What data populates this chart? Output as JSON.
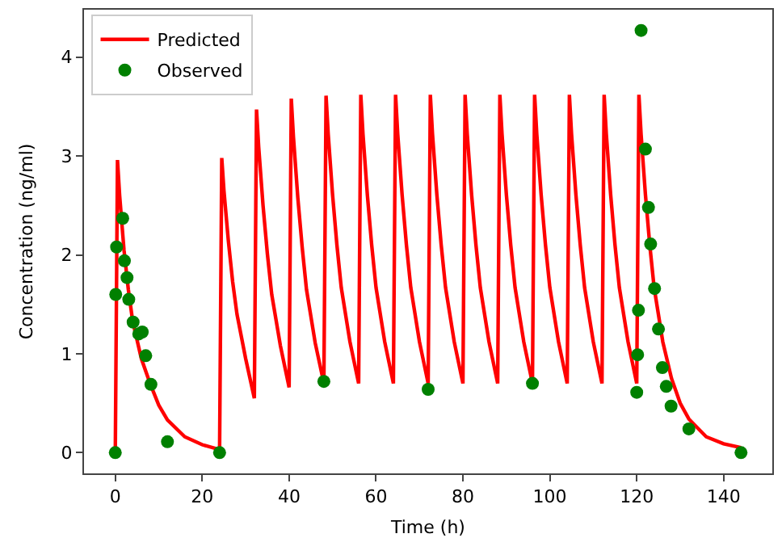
{
  "chart_data": {
    "type": "line",
    "xlabel": "Time (h)",
    "ylabel": "Concentration (ng/ml)",
    "xlim": [
      -7.2,
      151.2
    ],
    "xticks": [
      0,
      20,
      40,
      60,
      80,
      100,
      120,
      140
    ],
    "ylim": [
      -0.21,
      4.48
    ],
    "yticks": [
      0,
      1,
      2,
      3,
      4
    ],
    "grid": false,
    "legend": "top left",
    "series": [
      {
        "name": "Predicted",
        "color": "#ff0000",
        "marker": "none",
        "line_style": "solid",
        "x": [
          0,
          0.5,
          1,
          2,
          3,
          4,
          6,
          8,
          10,
          12,
          16,
          20,
          24,
          24.5,
          25,
          26,
          27,
          28,
          30,
          32,
          32.5,
          33,
          34,
          35,
          36,
          38,
          40,
          40.5,
          41,
          42,
          43,
          44,
          46,
          48,
          48.5,
          49,
          50,
          51,
          52,
          54,
          56,
          56.5,
          57,
          58,
          59,
          60,
          62,
          64,
          64.5,
          65,
          66,
          67,
          68,
          70,
          72,
          72.5,
          73,
          74,
          75,
          76,
          78,
          80,
          80.5,
          81,
          82,
          83,
          84,
          86,
          88,
          88.5,
          89,
          90,
          91,
          92,
          94,
          96,
          96.5,
          97,
          98,
          99,
          100,
          102,
          104,
          104.5,
          105,
          106,
          107,
          108,
          110,
          112,
          112.5,
          113,
          114,
          115,
          116,
          118,
          120,
          120.5,
          121,
          122,
          123,
          124,
          126,
          128,
          130,
          132,
          136,
          140,
          144
        ],
        "values": [
          0,
          2.96,
          2.6,
          2.05,
          1.65,
          1.33,
          0.95,
          0.7,
          0.48,
          0.33,
          0.16,
          0.08,
          0.03,
          2.98,
          2.65,
          2.15,
          1.73,
          1.4,
          0.95,
          0.55,
          3.47,
          3.09,
          2.5,
          2.01,
          1.6,
          1.08,
          0.66,
          3.58,
          3.19,
          2.58,
          2.08,
          1.65,
          1.11,
          0.7,
          3.61,
          3.22,
          2.61,
          2.1,
          1.67,
          1.12,
          0.7,
          3.62,
          3.22,
          2.61,
          2.1,
          1.67,
          1.12,
          0.7,
          3.62,
          3.22,
          2.61,
          2.1,
          1.67,
          1.12,
          0.7,
          3.62,
          3.22,
          2.61,
          2.1,
          1.67,
          1.12,
          0.7,
          3.62,
          3.22,
          2.61,
          2.1,
          1.67,
          1.12,
          0.7,
          3.62,
          3.22,
          2.61,
          2.1,
          1.67,
          1.12,
          0.7,
          3.62,
          3.22,
          2.61,
          2.1,
          1.67,
          1.12,
          0.7,
          3.62,
          3.22,
          2.61,
          2.1,
          1.67,
          1.12,
          0.7,
          3.62,
          3.22,
          2.61,
          2.1,
          1.67,
          1.12,
          0.7,
          3.62,
          3.22,
          2.61,
          2.1,
          1.67,
          1.12,
          0.75,
          0.5,
          0.34,
          0.16,
          0.09,
          0.05
        ]
      },
      {
        "name": "Observed",
        "type": "scatter",
        "color": "#008000",
        "marker": "circle",
        "x": [
          0,
          0.1,
          0.3,
          1.7,
          2.1,
          2.7,
          3.1,
          4.1,
          5.4,
          6.2,
          7,
          8.2,
          12,
          24,
          48,
          72,
          96,
          120,
          120.2,
          120.4,
          121,
          122,
          122.7,
          123.2,
          124.1,
          125,
          125.9,
          126.8,
          127.9,
          132,
          144
        ],
        "values": [
          0,
          1.6,
          2.08,
          2.37,
          1.94,
          1.77,
          1.55,
          1.32,
          1.2,
          1.22,
          0.98,
          0.69,
          0.11,
          0,
          0.72,
          0.64,
          0.7,
          0.61,
          0.99,
          1.44,
          4.27,
          3.07,
          2.48,
          2.11,
          1.66,
          1.25,
          0.86,
          0.67,
          0.47,
          0.24,
          0
        ]
      }
    ]
  }
}
